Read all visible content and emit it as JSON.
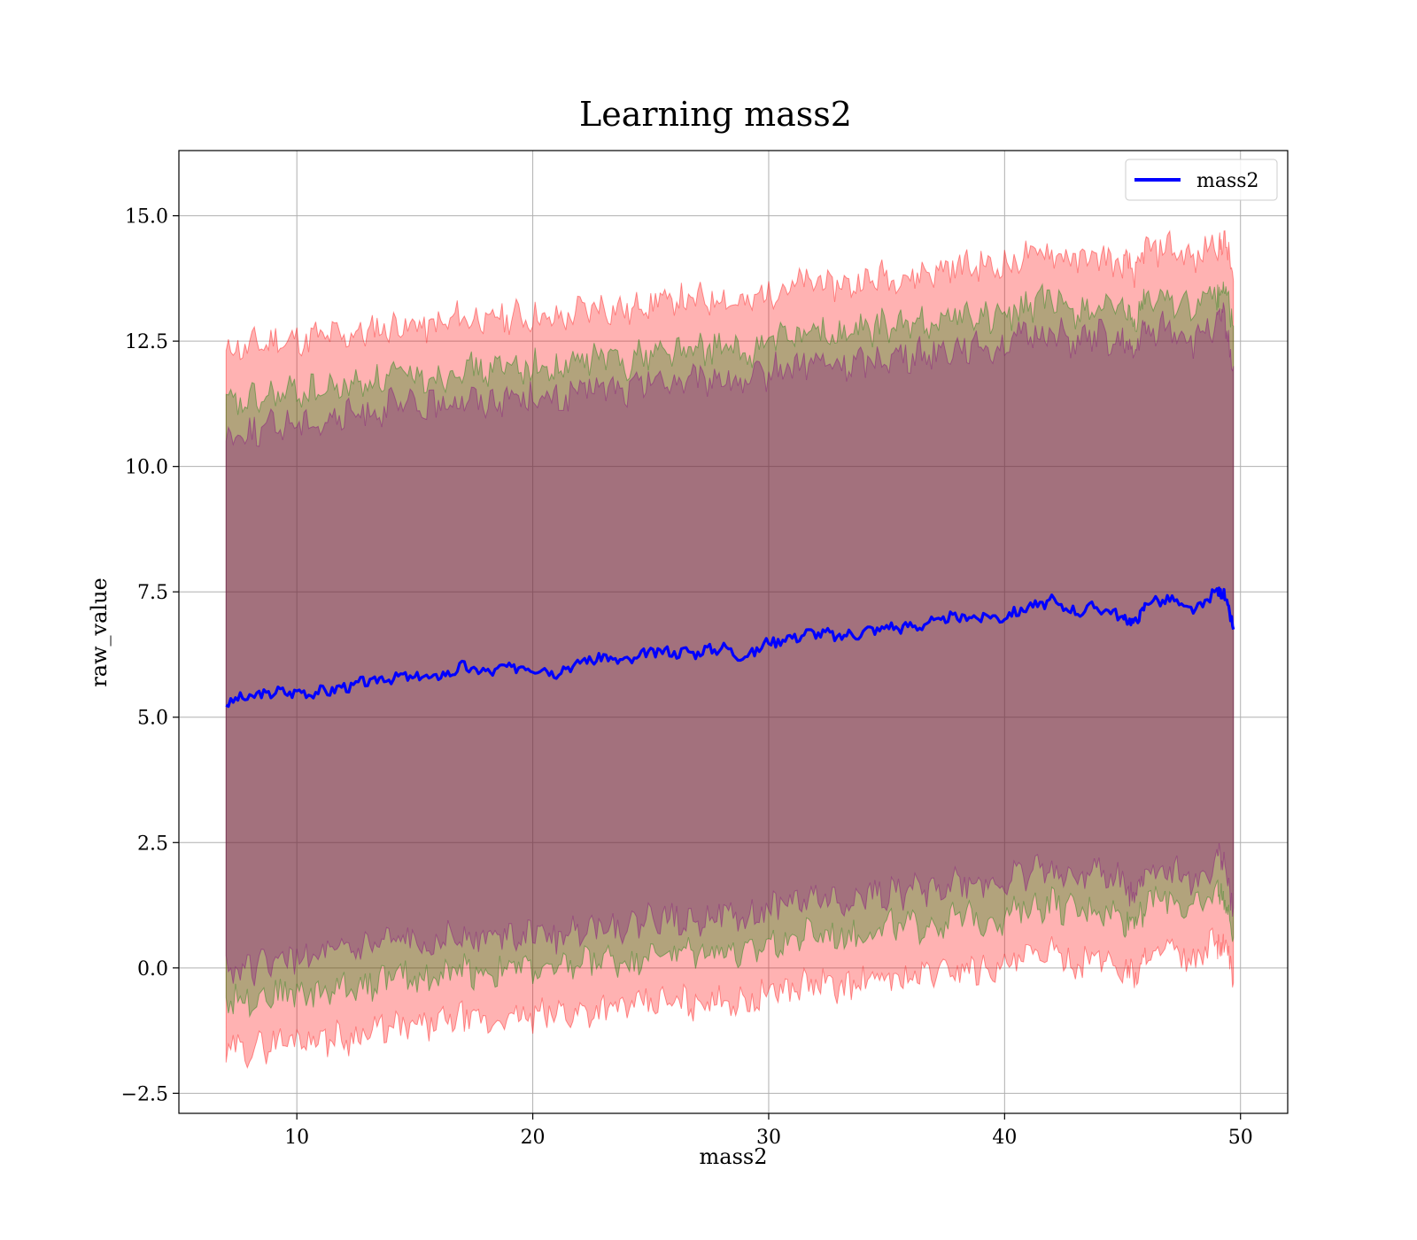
{
  "chart_data": {
    "type": "area",
    "title": "Learning mass2",
    "xlabel": "mass2",
    "ylabel": "raw_value",
    "xlim": [
      5,
      52
    ],
    "ylim": [
      -2.9,
      16.3
    ],
    "xticks": [
      10,
      20,
      30,
      40,
      50
    ],
    "xtick_labels": [
      "10",
      "20",
      "30",
      "40",
      "50"
    ],
    "yticks": [
      -2.5,
      0.0,
      2.5,
      5.0,
      7.5,
      10.0,
      12.5,
      15.0
    ],
    "ytick_labels": [
      "−2.5",
      "0.0",
      "2.5",
      "5.0",
      "7.5",
      "10.0",
      "12.5",
      "15.0"
    ],
    "grid": true,
    "legend": {
      "position": "top-right",
      "entries": [
        "mass2"
      ]
    },
    "x": [
      7.0,
      8.0,
      9.0,
      10.0,
      11.0,
      12.0,
      13.0,
      14.0,
      15.0,
      16.0,
      17.0,
      18.0,
      19.0,
      20.0,
      21.0,
      22.0,
      23.0,
      24.0,
      25.0,
      26.0,
      27.0,
      28.0,
      29.0,
      30.0,
      31.0,
      32.0,
      33.0,
      34.0,
      35.0,
      36.0,
      37.0,
      38.0,
      39.0,
      40.0,
      41.0,
      42.0,
      43.0,
      44.0,
      45.0,
      45.5,
      46.0,
      47.0,
      48.0,
      49.0,
      49.3,
      49.7
    ],
    "series": [
      {
        "name": "mass2",
        "color": "#0000ff",
        "values": [
          5.3,
          5.4,
          5.5,
          5.5,
          5.5,
          5.6,
          5.7,
          5.8,
          5.8,
          5.8,
          6.0,
          5.9,
          6.0,
          6.0,
          5.9,
          6.1,
          6.2,
          6.1,
          6.3,
          6.3,
          6.3,
          6.4,
          6.2,
          6.5,
          6.6,
          6.7,
          6.6,
          6.7,
          6.8,
          6.8,
          6.9,
          7.0,
          7.0,
          7.0,
          7.2,
          7.3,
          7.1,
          7.2,
          7.0,
          6.85,
          7.3,
          7.35,
          7.1,
          7.5,
          7.5,
          6.75
        ]
      }
    ],
    "bands": [
      {
        "color": "#ff0000",
        "opacity": 0.3,
        "lower": [
          -1.7,
          -1.6,
          -1.5,
          -1.4,
          -1.4,
          -1.4,
          -1.3,
          -1.2,
          -1.2,
          -1.1,
          -1.0,
          -1.1,
          -1.0,
          -1.0,
          -0.9,
          -0.9,
          -0.8,
          -0.8,
          -0.7,
          -0.7,
          -0.7,
          -0.6,
          -0.7,
          -0.5,
          -0.4,
          -0.3,
          -0.4,
          -0.3,
          -0.2,
          -0.2,
          -0.1,
          0.0,
          0.0,
          0.0,
          0.2,
          0.3,
          0.1,
          0.2,
          0.0,
          -0.2,
          0.3,
          0.3,
          0.1,
          0.5,
          0.5,
          -0.3
        ],
        "upper": [
          12.3,
          12.4,
          12.5,
          12.5,
          12.6,
          12.6,
          12.7,
          12.8,
          12.8,
          12.8,
          13.0,
          12.9,
          13.0,
          13.0,
          12.9,
          13.1,
          13.2,
          13.1,
          13.3,
          13.3,
          13.3,
          13.4,
          13.2,
          13.5,
          13.6,
          13.7,
          13.6,
          13.7,
          13.8,
          13.8,
          13.9,
          14.0,
          14.0,
          14.0,
          14.2,
          14.3,
          14.1,
          14.2,
          14.0,
          13.9,
          14.3,
          14.4,
          14.1,
          14.5,
          14.5,
          13.7
        ]
      },
      {
        "color": "#008000",
        "opacity": 0.3,
        "lower": [
          -0.6,
          -0.6,
          -0.5,
          -0.5,
          -0.5,
          -0.4,
          -0.3,
          -0.2,
          -0.2,
          -0.2,
          0.0,
          -0.1,
          0.0,
          0.0,
          -0.1,
          0.1,
          0.2,
          0.1,
          0.3,
          0.3,
          0.3,
          0.4,
          0.2,
          0.5,
          0.6,
          0.7,
          0.6,
          0.7,
          0.8,
          0.8,
          0.9,
          1.0,
          1.0,
          1.0,
          1.2,
          1.3,
          1.1,
          1.2,
          1.0,
          0.9,
          1.3,
          1.4,
          1.1,
          1.5,
          1.5,
          0.6
        ],
        "upper": [
          11.2,
          11.3,
          11.4,
          11.5,
          11.5,
          11.6,
          11.7,
          11.8,
          11.8,
          11.8,
          12.0,
          11.9,
          12.0,
          12.0,
          11.9,
          12.1,
          12.2,
          12.1,
          12.3,
          12.3,
          12.3,
          12.4,
          12.2,
          12.5,
          12.6,
          12.7,
          12.6,
          12.7,
          12.8,
          12.8,
          12.9,
          13.0,
          13.0,
          13.0,
          13.2,
          13.3,
          13.1,
          13.2,
          13.0,
          12.9,
          13.3,
          13.4,
          13.1,
          13.5,
          13.5,
          12.8
        ]
      },
      {
        "color": "#800080",
        "opacity": 0.3,
        "lower": [
          0.0,
          0.0,
          0.1,
          0.2,
          0.2,
          0.3,
          0.4,
          0.5,
          0.5,
          0.5,
          0.7,
          0.6,
          0.7,
          0.7,
          0.6,
          0.8,
          0.9,
          0.8,
          1.0,
          1.0,
          1.0,
          1.1,
          0.9,
          1.2,
          1.3,
          1.4,
          1.3,
          1.4,
          1.5,
          1.5,
          1.6,
          1.7,
          1.7,
          1.7,
          1.9,
          2.0,
          1.8,
          1.9,
          1.7,
          1.5,
          1.9,
          2.0,
          1.7,
          2.1,
          2.1,
          1.2
        ],
        "upper": [
          10.6,
          10.7,
          10.8,
          10.9,
          10.9,
          11.0,
          11.1,
          11.2,
          11.2,
          11.2,
          11.4,
          11.3,
          11.4,
          11.4,
          11.3,
          11.5,
          11.6,
          11.5,
          11.7,
          11.7,
          11.7,
          11.8,
          11.6,
          11.9,
          12.0,
          12.1,
          12.0,
          12.1,
          12.2,
          12.2,
          12.3,
          12.4,
          12.4,
          12.4,
          12.6,
          12.7,
          12.5,
          12.6,
          12.4,
          12.3,
          12.7,
          12.8,
          12.5,
          12.9,
          12.9,
          12.0
        ]
      }
    ]
  }
}
